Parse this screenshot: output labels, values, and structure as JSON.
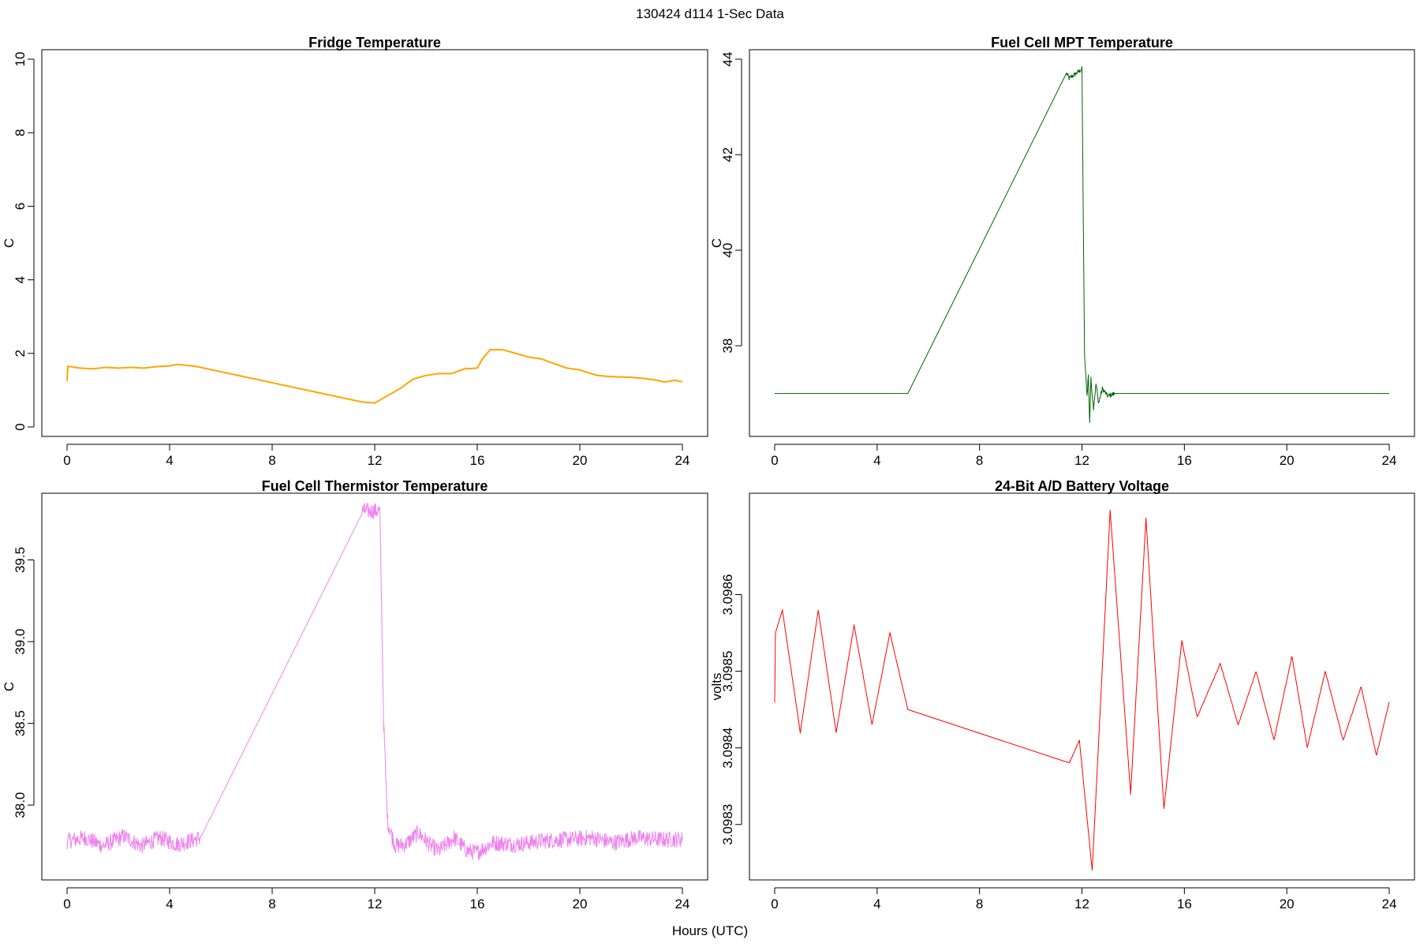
{
  "header": {
    "title": "130424   d114   1-Sec Data"
  },
  "footer": {
    "xlabel": "Hours (UTC)"
  },
  "chart_data": [
    {
      "type": "line",
      "title": "Fridge Temperature",
      "xlabel": "Hours (UTC)",
      "ylabel": "C",
      "color": "#ffa500",
      "xlim": [
        0,
        24
      ],
      "ylim": [
        0,
        10
      ],
      "x_ticks": [
        0,
        4,
        8,
        12,
        16,
        20,
        24
      ],
      "y_ticks": [
        0,
        2,
        4,
        6,
        8,
        10
      ],
      "y_tick_labels": [
        "0",
        "2",
        "4",
        "6",
        "8",
        "10"
      ],
      "noise": 0.0,
      "points": [
        [
          0,
          1.25
        ],
        [
          0.03,
          1.65
        ],
        [
          0.5,
          1.6
        ],
        [
          1,
          1.58
        ],
        [
          1.5,
          1.62
        ],
        [
          2,
          1.6
        ],
        [
          2.5,
          1.62
        ],
        [
          3,
          1.6
        ],
        [
          3.5,
          1.64
        ],
        [
          4,
          1.66
        ],
        [
          4.3,
          1.7
        ],
        [
          4.6,
          1.68
        ],
        [
          5,
          1.65
        ],
        [
          5.2,
          1.62
        ],
        [
          11.5,
          0.68
        ],
        [
          12,
          0.65
        ],
        [
          12.5,
          0.85
        ],
        [
          13,
          1.05
        ],
        [
          13.5,
          1.3
        ],
        [
          14,
          1.4
        ],
        [
          14.5,
          1.45
        ],
        [
          15,
          1.45
        ],
        [
          15.5,
          1.58
        ],
        [
          16,
          1.6
        ],
        [
          16.2,
          1.85
        ],
        [
          16.5,
          2.1
        ],
        [
          17,
          2.1
        ],
        [
          17.5,
          2.0
        ],
        [
          18,
          1.9
        ],
        [
          18.5,
          1.85
        ],
        [
          19,
          1.72
        ],
        [
          19.5,
          1.6
        ],
        [
          20,
          1.55
        ],
        [
          20.3,
          1.48
        ],
        [
          20.7,
          1.4
        ],
        [
          21,
          1.38
        ],
        [
          21.5,
          1.36
        ],
        [
          22,
          1.35
        ],
        [
          22.5,
          1.32
        ],
        [
          23,
          1.27
        ],
        [
          23.3,
          1.22
        ],
        [
          23.7,
          1.27
        ],
        [
          24,
          1.23
        ]
      ]
    },
    {
      "type": "line",
      "title": "Fuel Cell MPT Temperature",
      "xlabel": "Hours (UTC)",
      "ylabel": "C",
      "color": "#006400",
      "xlim": [
        0,
        24
      ],
      "ylim": [
        36.3,
        44.0
      ],
      "x_ticks": [
        0,
        4,
        8,
        12,
        16,
        20,
        24
      ],
      "y_ticks": [
        38,
        40,
        42,
        44
      ],
      "y_tick_labels": [
        "38",
        "40",
        "42",
        "44"
      ],
      "noise": 0.05,
      "points": [
        [
          0,
          37.0
        ],
        [
          5.2,
          37.0
        ],
        [
          11.4,
          43.7
        ],
        [
          11.5,
          43.6
        ],
        [
          11.9,
          43.75
        ],
        [
          12.0,
          43.8
        ],
        [
          12.1,
          37.8
        ],
        [
          12.2,
          36.95
        ],
        [
          12.25,
          37.4
        ],
        [
          12.3,
          36.4
        ],
        [
          12.35,
          37.3
        ],
        [
          12.45,
          36.7
        ],
        [
          12.55,
          37.2
        ],
        [
          12.65,
          36.8
        ],
        [
          12.8,
          37.1
        ],
        [
          13.0,
          36.95
        ],
        [
          13.3,
          37.0
        ],
        [
          24,
          37.0
        ]
      ]
    },
    {
      "type": "line",
      "title": "Fuel Cell Thermistor Temperature",
      "xlabel": "Hours (UTC)",
      "ylabel": "C",
      "color": "#ee82ee",
      "xlim": [
        0,
        24
      ],
      "ylim": [
        37.6,
        39.85
      ],
      "x_ticks": [
        0,
        4,
        8,
        12,
        16,
        20,
        24
      ],
      "y_ticks": [
        38.0,
        38.5,
        39.0,
        39.5
      ],
      "y_tick_labels": [
        "38.0",
        "38.5",
        "39.0",
        "39.5"
      ],
      "noise": 0.05,
      "points": [
        [
          0,
          37.78
        ],
        [
          0.7,
          37.8
        ],
        [
          1.4,
          37.75
        ],
        [
          2.2,
          37.81
        ],
        [
          2.9,
          37.75
        ],
        [
          3.6,
          37.8
        ],
        [
          4.3,
          37.76
        ],
        [
          5.2,
          37.8
        ],
        [
          11.5,
          39.8
        ],
        [
          12.2,
          39.8
        ],
        [
          12.35,
          38.5
        ],
        [
          12.5,
          37.9
        ],
        [
          12.8,
          37.75
        ],
        [
          13.2,
          37.76
        ],
        [
          13.7,
          37.83
        ],
        [
          14.2,
          37.75
        ],
        [
          14.5,
          37.72
        ],
        [
          15.1,
          37.8
        ],
        [
          15.6,
          37.72
        ],
        [
          16.0,
          37.71
        ],
        [
          16.6,
          37.77
        ],
        [
          17.5,
          37.76
        ],
        [
          18.5,
          37.78
        ],
        [
          19.5,
          37.79
        ],
        [
          20.5,
          37.8
        ],
        [
          21.3,
          37.77
        ],
        [
          22.2,
          37.8
        ],
        [
          23,
          37.79
        ],
        [
          24,
          37.79
        ]
      ]
    },
    {
      "type": "line",
      "title": "24-Bit A/D Battery Voltage",
      "xlabel": "Hours (UTC)",
      "ylabel": "volts",
      "color": "#ff0000",
      "xlim": [
        0,
        24
      ],
      "ylim": [
        3.09824,
        3.09872
      ],
      "x_ticks": [
        0,
        4,
        8,
        12,
        16,
        20,
        24
      ],
      "y_ticks": [
        3.0983,
        3.0984,
        3.0985,
        3.0986
      ],
      "y_tick_labels": [
        "3.0983",
        "3.0984",
        "3.0985",
        "3.0986"
      ],
      "noise": 8e-07,
      "points": [
        [
          0,
          3.09846
        ],
        [
          0.03,
          3.09855
        ],
        [
          0.3,
          3.09858
        ],
        [
          1.0,
          3.09842
        ],
        [
          1.7,
          3.09858
        ],
        [
          2.4,
          3.09842
        ],
        [
          3.1,
          3.09856
        ],
        [
          3.8,
          3.09843
        ],
        [
          4.5,
          3.09855
        ],
        [
          5.2,
          3.09845
        ],
        [
          11.5,
          3.09838
        ],
        [
          11.9,
          3.09841
        ],
        [
          12.4,
          3.09824
        ],
        [
          13.1,
          3.09871
        ],
        [
          13.9,
          3.09834
        ],
        [
          14.5,
          3.0987
        ],
        [
          15.2,
          3.09832
        ],
        [
          15.9,
          3.09854
        ],
        [
          16.5,
          3.09844
        ],
        [
          17.4,
          3.09851
        ],
        [
          18.1,
          3.09843
        ],
        [
          18.8,
          3.0985
        ],
        [
          19.5,
          3.09841
        ],
        [
          20.2,
          3.09852
        ],
        [
          20.8,
          3.0984
        ],
        [
          21.5,
          3.0985
        ],
        [
          22.2,
          3.09841
        ],
        [
          22.9,
          3.09848
        ],
        [
          23.5,
          3.09839
        ],
        [
          24,
          3.09846
        ]
      ]
    }
  ]
}
